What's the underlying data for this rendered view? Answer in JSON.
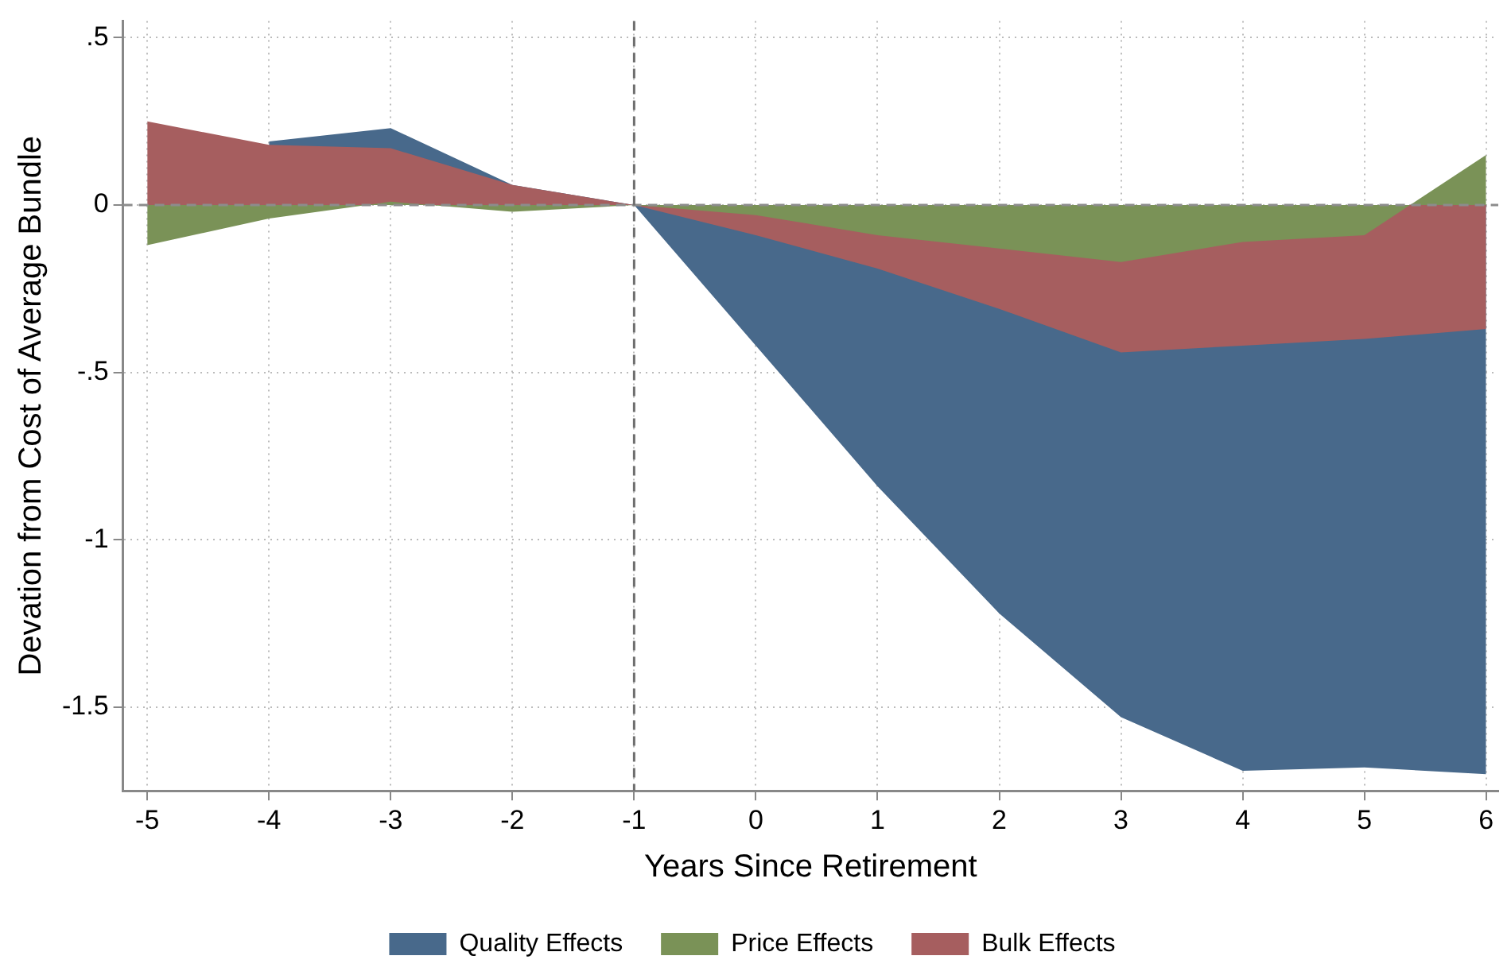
{
  "chart_data": {
    "type": "area",
    "xlabel": "Years Since Retirement",
    "ylabel": "Devation from Cost of Average Bundle",
    "x": [
      -5,
      -4,
      -3,
      -2,
      -1,
      0,
      1,
      2,
      3,
      4,
      5,
      6
    ],
    "series": [
      {
        "name": "Quality Effects",
        "color": "#48698b",
        "values": [
          null,
          0.19,
          0.23,
          0.06,
          0,
          -0.42,
          -0.84,
          -1.22,
          -1.53,
          -1.69,
          -1.68,
          -1.7
        ]
      },
      {
        "name": "Price Effects",
        "color": "#7a9257",
        "values": [
          -0.12,
          -0.04,
          0.01,
          -0.02,
          0,
          -0.03,
          -0.09,
          -0.13,
          -0.17,
          -0.11,
          -0.09,
          0.15
        ]
      },
      {
        "name": "Bulk Effects",
        "color": "#a65e5f",
        "values": [
          0.25,
          0.18,
          0.17,
          0.06,
          0,
          -0.09,
          -0.19,
          -0.31,
          -0.44,
          -0.42,
          -0.4,
          -0.37
        ]
      }
    ],
    "xlim": [
      -5.2,
      6.1
    ],
    "xticks": [
      -5,
      -4,
      -3,
      -2,
      -1,
      0,
      1,
      2,
      3,
      4,
      5,
      6
    ],
    "ylim": [
      -1.75,
      0.55
    ],
    "yticks": [
      {
        "value": 0.5,
        "label": ".5"
      },
      0,
      {
        "value": -0.5,
        "label": "-.5"
      },
      -1,
      -1.5
    ],
    "ref_lines": [
      {
        "axis": "y",
        "value": 0,
        "color": "#8c8c8c",
        "line_style": "dashed"
      },
      {
        "axis": "x",
        "value": -1,
        "color": "#6e6e6e",
        "line_style": "dashed"
      }
    ],
    "grid": true,
    "legend": "bottom"
  }
}
